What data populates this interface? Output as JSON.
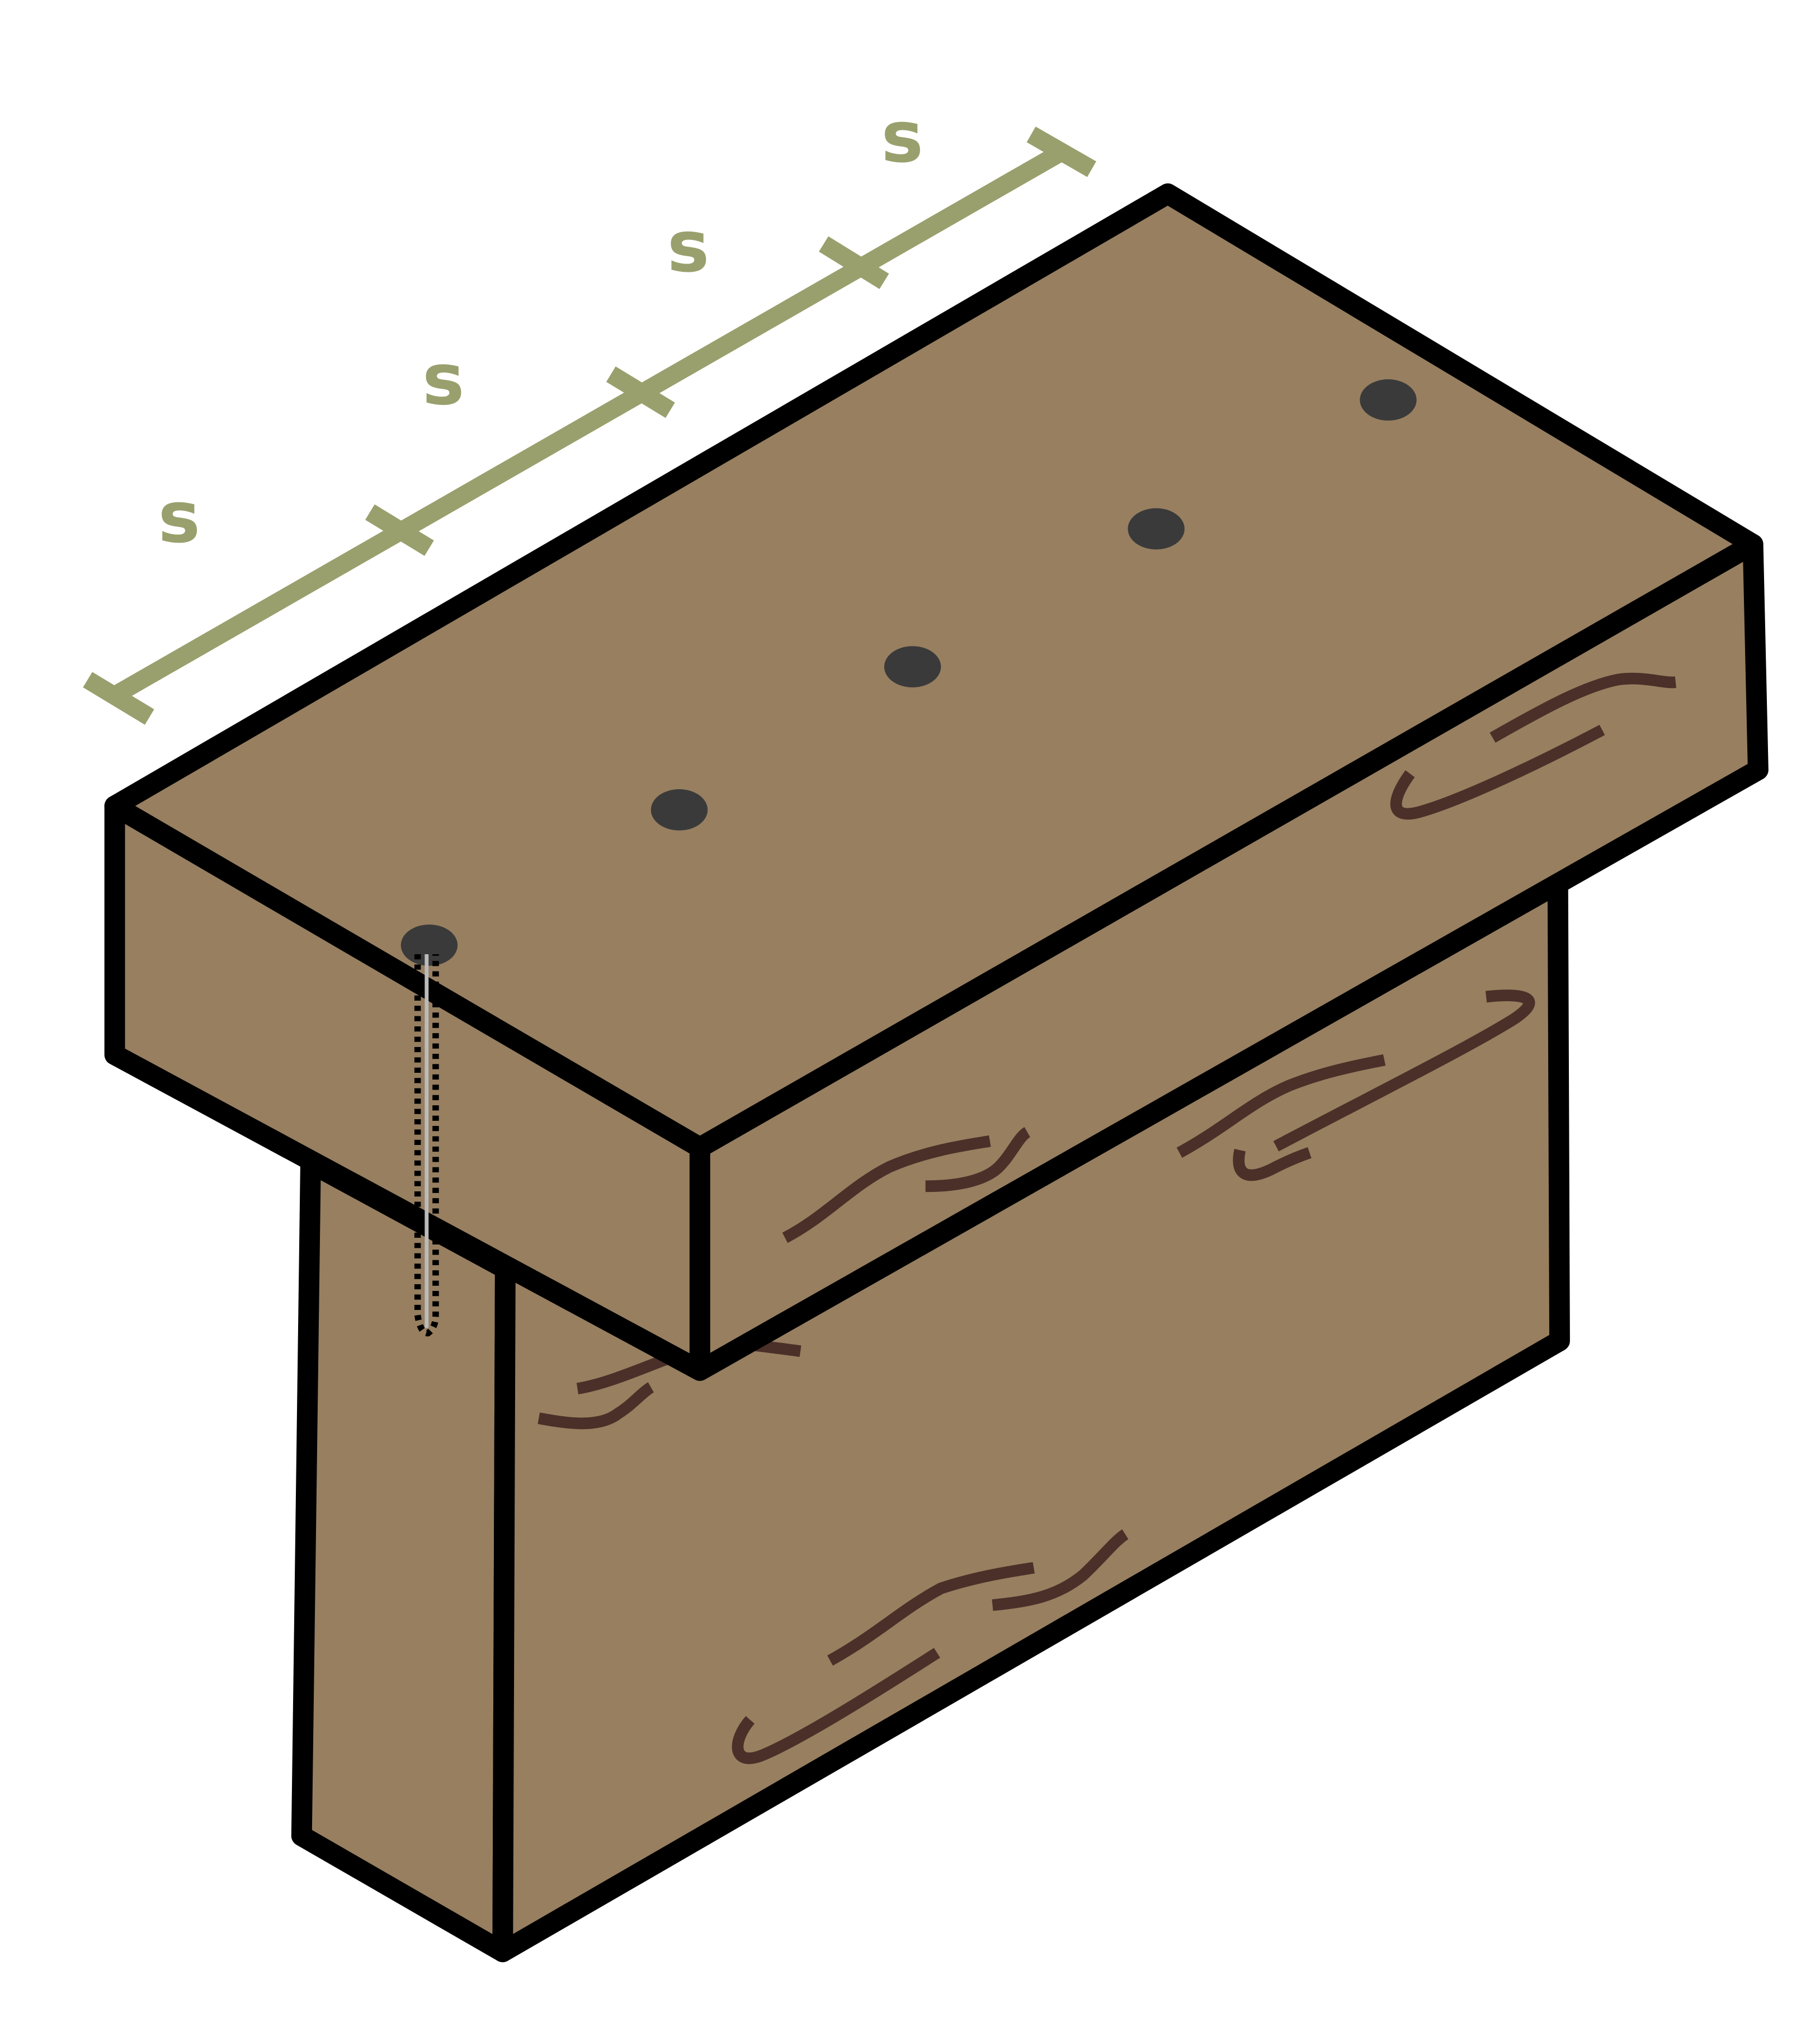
{
  "diagram": {
    "colors": {
      "wood": "#977f60",
      "outline": "#000000",
      "grain": "#4a3028",
      "nail_head": "#3a3a3a",
      "dimension": "#99a06d"
    },
    "spacing_labels": [
      "s",
      "s",
      "s",
      "s"
    ],
    "nail_count": 5,
    "icons": [
      "nail-icon"
    ]
  }
}
